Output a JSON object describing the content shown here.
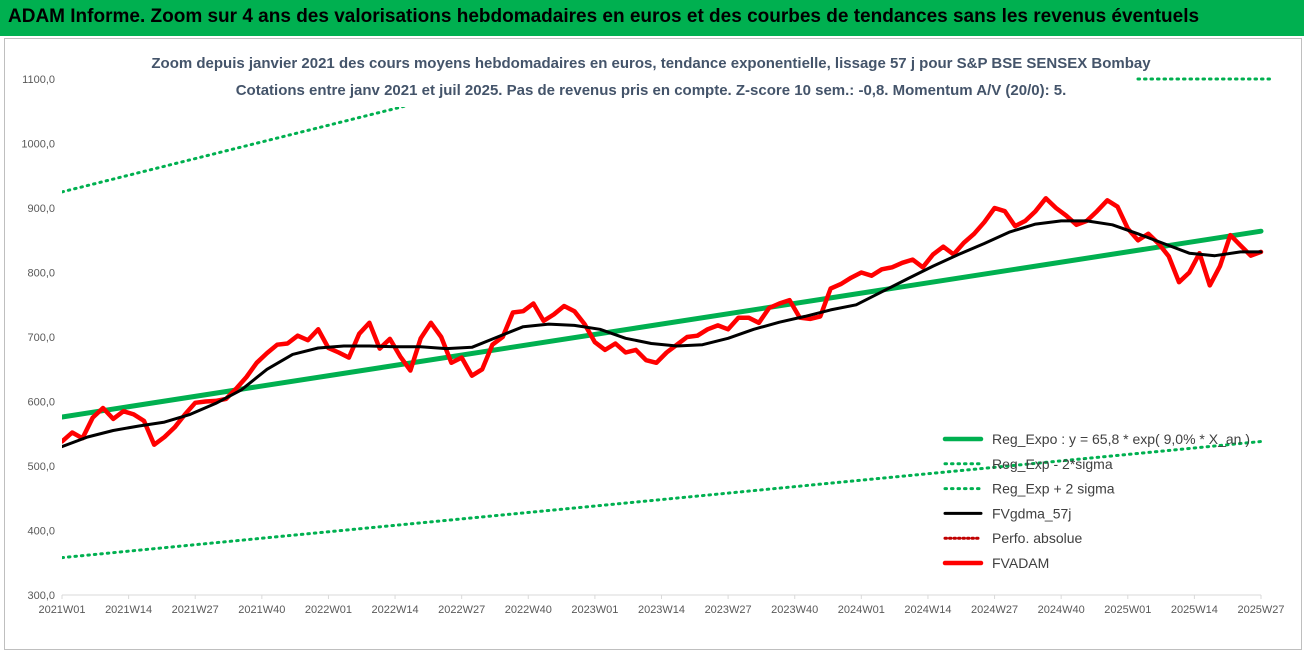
{
  "banner": {
    "title": "ADAM Informe. Zoom sur 4 ans des valorisations hebdomadaires en euros et des courbes de tendances sans les revenus éventuels"
  },
  "colors": {
    "banner": "#00b050",
    "trend": "#00b050",
    "fvadam": "#ff0000",
    "mma": "#000000",
    "perfo": "#c00000"
  },
  "chart_data": {
    "type": "line",
    "title": "Zoom depuis janvier 2021 des cours moyens hebdomadaires en euros, tendance exponentielle, lissage 57 j pour S&P BSE SENSEX Bombay",
    "subtitle": "Cotations entre janv 2021 et juil 2025. Pas de revenus pris en compte. Z-score 10 sem.: -0,8. Momentum A/V (20/0): 5.",
    "ylim": [
      300,
      1100
    ],
    "yticks": [
      "300,0",
      "400,0",
      "500,0",
      "600,0",
      "700,0",
      "800,0",
      "900,0",
      "1000,0",
      "1100,0"
    ],
    "yticks_values": [
      300,
      400,
      500,
      600,
      700,
      800,
      900,
      1000,
      1100
    ],
    "xticks": [
      "2021W01",
      "2021W14",
      "2021W27",
      "2021W40",
      "2022W01",
      "2022W14",
      "2022W27",
      "2022W40",
      "2023W01",
      "2023W14",
      "2023W27",
      "2023W40",
      "2024W01",
      "2024W14",
      "2024W27",
      "2024W40",
      "2025W01",
      "2025W14",
      "2025W27"
    ],
    "xticks_index": [
      0,
      13,
      26,
      39,
      52,
      65,
      78,
      91,
      104,
      117,
      130,
      143,
      156,
      169,
      182,
      195,
      208,
      221,
      234
    ],
    "grid": false,
    "legend_position": "bottom-right",
    "series": [
      {
        "name": "Reg_Expo : y = 65,8 * exp( 9,0% * X_an )",
        "style": "solid-thick",
        "points": [
          [
            0,
            576
          ],
          [
            234,
            864
          ]
        ]
      },
      {
        "name": "Reg_Exp - 2*sigma",
        "style": "dotted",
        "points": [
          [
            0,
            358
          ],
          [
            234,
            538
          ]
        ]
      },
      {
        "name": "Reg_Exp + 2 sigma",
        "style": "dotted",
        "points": [
          [
            0,
            925
          ],
          [
            234,
            1390
          ]
        ]
      },
      {
        "name": "FVgdma_57j",
        "style": "solid",
        "points": [
          [
            0,
            530
          ],
          [
            5,
            545
          ],
          [
            10,
            555
          ],
          [
            15,
            562
          ],
          [
            20,
            568
          ],
          [
            25,
            580
          ],
          [
            30,
            597
          ],
          [
            35,
            618
          ],
          [
            40,
            650
          ],
          [
            45,
            673
          ],
          [
            50,
            683
          ],
          [
            55,
            686
          ],
          [
            60,
            686
          ],
          [
            65,
            685
          ],
          [
            70,
            685
          ],
          [
            75,
            682
          ],
          [
            80,
            684
          ],
          [
            85,
            700
          ],
          [
            90,
            716
          ],
          [
            95,
            720
          ],
          [
            100,
            718
          ],
          [
            105,
            712
          ],
          [
            110,
            698
          ],
          [
            115,
            690
          ],
          [
            120,
            686
          ],
          [
            125,
            688
          ],
          [
            130,
            698
          ],
          [
            135,
            712
          ],
          [
            140,
            723
          ],
          [
            145,
            732
          ],
          [
            150,
            742
          ],
          [
            155,
            750
          ],
          [
            160,
            770
          ],
          [
            165,
            790
          ],
          [
            170,
            810
          ],
          [
            175,
            828
          ],
          [
            180,
            845
          ],
          [
            185,
            863
          ],
          [
            190,
            875
          ],
          [
            195,
            880
          ],
          [
            200,
            880
          ],
          [
            205,
            874
          ],
          [
            210,
            860
          ],
          [
            215,
            845
          ],
          [
            220,
            830
          ],
          [
            225,
            826
          ],
          [
            230,
            832
          ],
          [
            234,
            832
          ]
        ]
      },
      {
        "name": "Perfo. absolue",
        "style": "dotted",
        "points": []
      },
      {
        "name": "FVADAM",
        "style": "solid-thick",
        "points": [
          [
            0,
            538
          ],
          [
            2,
            552
          ],
          [
            4,
            543
          ],
          [
            6,
            575
          ],
          [
            8,
            590
          ],
          [
            10,
            573
          ],
          [
            12,
            585
          ],
          [
            14,
            580
          ],
          [
            16,
            570
          ],
          [
            18,
            533
          ],
          [
            20,
            545
          ],
          [
            22,
            560
          ],
          [
            24,
            580
          ],
          [
            26,
            598
          ],
          [
            28,
            600
          ],
          [
            30,
            601
          ],
          [
            32,
            604
          ],
          [
            34,
            620
          ],
          [
            36,
            638
          ],
          [
            38,
            660
          ],
          [
            40,
            675
          ],
          [
            42,
            688
          ],
          [
            44,
            690
          ],
          [
            46,
            702
          ],
          [
            48,
            695
          ],
          [
            50,
            712
          ],
          [
            52,
            683
          ],
          [
            54,
            676
          ],
          [
            56,
            668
          ],
          [
            58,
            705
          ],
          [
            60,
            722
          ],
          [
            62,
            682
          ],
          [
            64,
            697
          ],
          [
            66,
            670
          ],
          [
            68,
            648
          ],
          [
            70,
            698
          ],
          [
            72,
            722
          ],
          [
            74,
            700
          ],
          [
            76,
            660
          ],
          [
            78,
            668
          ],
          [
            80,
            640
          ],
          [
            82,
            650
          ],
          [
            84,
            688
          ],
          [
            86,
            700
          ],
          [
            88,
            738
          ],
          [
            90,
            740
          ],
          [
            92,
            752
          ],
          [
            94,
            725
          ],
          [
            96,
            735
          ],
          [
            98,
            748
          ],
          [
            100,
            740
          ],
          [
            102,
            720
          ],
          [
            104,
            692
          ],
          [
            106,
            680
          ],
          [
            108,
            690
          ],
          [
            110,
            676
          ],
          [
            112,
            680
          ],
          [
            114,
            664
          ],
          [
            116,
            660
          ],
          [
            118,
            676
          ],
          [
            120,
            688
          ],
          [
            122,
            700
          ],
          [
            124,
            702
          ],
          [
            126,
            712
          ],
          [
            128,
            718
          ],
          [
            130,
            712
          ],
          [
            132,
            730
          ],
          [
            134,
            730
          ],
          [
            136,
            722
          ],
          [
            138,
            745
          ],
          [
            140,
            752
          ],
          [
            142,
            757
          ],
          [
            144,
            730
          ],
          [
            146,
            728
          ],
          [
            148,
            732
          ],
          [
            150,
            775
          ],
          [
            152,
            782
          ],
          [
            154,
            792
          ],
          [
            156,
            800
          ],
          [
            158,
            795
          ],
          [
            160,
            805
          ],
          [
            162,
            808
          ],
          [
            164,
            815
          ],
          [
            166,
            820
          ],
          [
            168,
            808
          ],
          [
            170,
            828
          ],
          [
            172,
            840
          ],
          [
            174,
            828
          ],
          [
            176,
            846
          ],
          [
            178,
            860
          ],
          [
            180,
            878
          ],
          [
            182,
            900
          ],
          [
            184,
            895
          ],
          [
            186,
            872
          ],
          [
            188,
            880
          ],
          [
            190,
            895
          ],
          [
            192,
            915
          ],
          [
            194,
            900
          ],
          [
            196,
            888
          ],
          [
            198,
            874
          ],
          [
            200,
            880
          ],
          [
            202,
            895
          ],
          [
            204,
            912
          ],
          [
            206,
            902
          ],
          [
            208,
            868
          ],
          [
            210,
            850
          ],
          [
            212,
            860
          ],
          [
            214,
            845
          ],
          [
            216,
            825
          ],
          [
            218,
            785
          ],
          [
            220,
            800
          ],
          [
            222,
            830
          ],
          [
            224,
            780
          ],
          [
            226,
            810
          ],
          [
            228,
            858
          ],
          [
            230,
            842
          ],
          [
            232,
            826
          ],
          [
            234,
            832
          ]
        ]
      }
    ]
  }
}
